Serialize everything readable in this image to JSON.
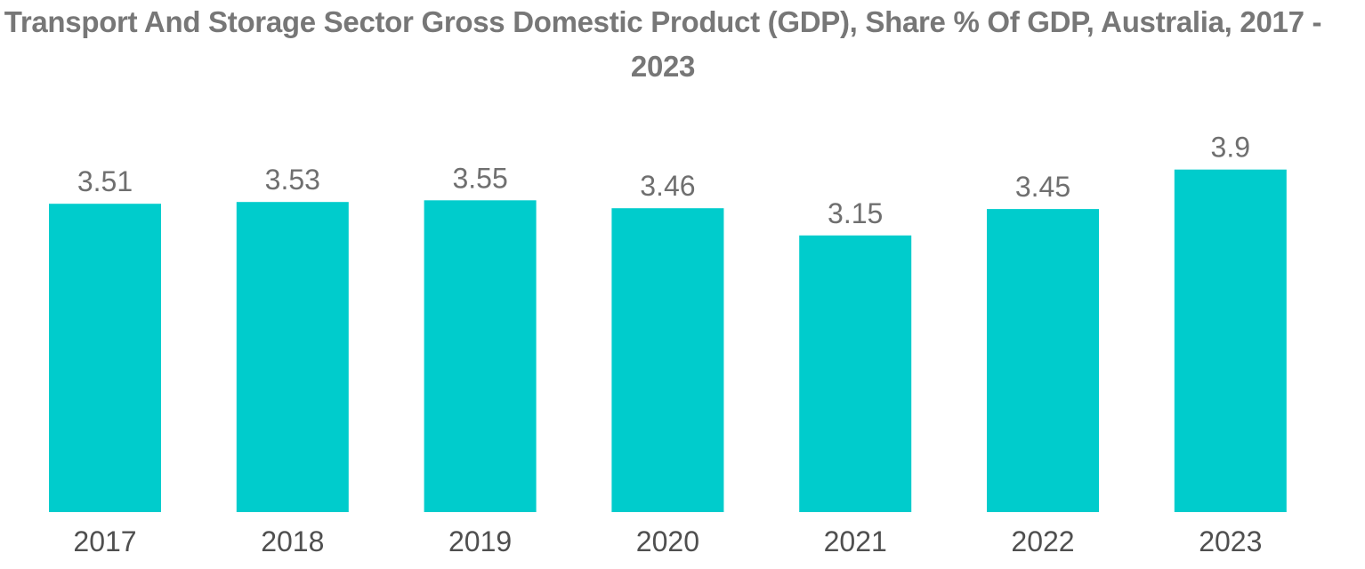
{
  "chart_data": {
    "type": "bar",
    "title": "Transport And Storage Sector Gross Domestic Product (GDP), Share % Of GDP, Australia, 2017 - 2023",
    "categories": [
      "2017",
      "2018",
      "2019",
      "2020",
      "2021",
      "2022",
      "2023"
    ],
    "values": [
      3.51,
      3.53,
      3.55,
      3.46,
      3.15,
      3.45,
      3.9
    ],
    "value_labels": [
      "3.51",
      "3.53",
      "3.55",
      "3.46",
      "3.15",
      "3.45",
      "3.9"
    ],
    "xlabel": "",
    "ylabel": "",
    "ylim": [
      0,
      4.4
    ],
    "grid": false,
    "legend": "none",
    "bar_color": "#00cccc"
  }
}
